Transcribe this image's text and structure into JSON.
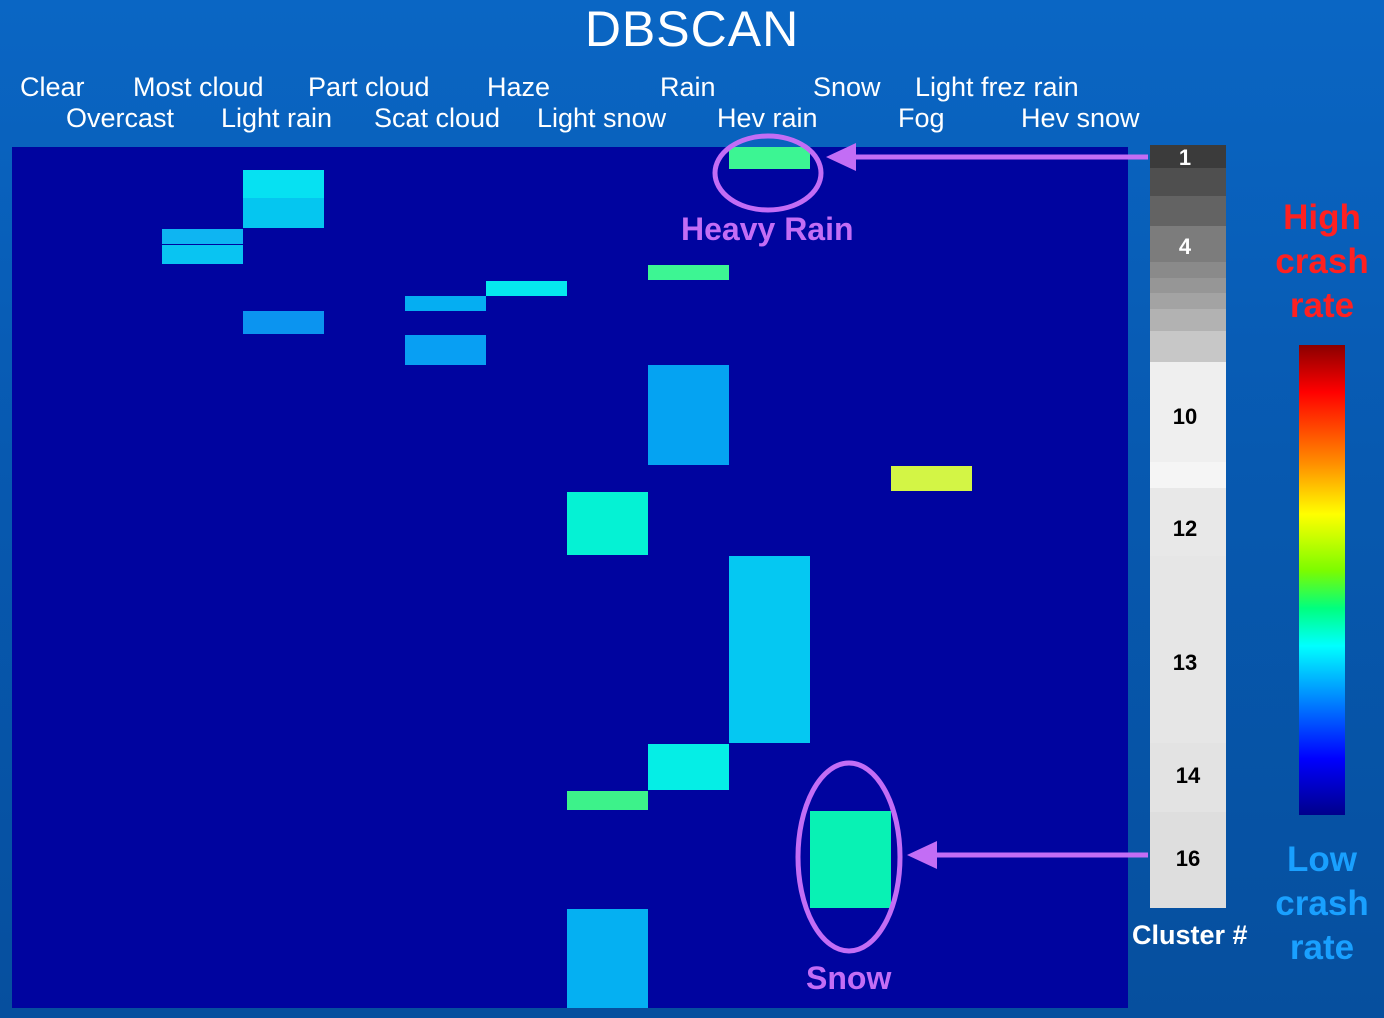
{
  "title": "DBSCAN",
  "chart_data": {
    "type": "heatmap",
    "title": "DBSCAN",
    "categories": [
      "Clear",
      "Overcast",
      "Most cloud",
      "Light rain",
      "Part cloud",
      "Scat cloud",
      "Haze",
      "Light snow",
      "Rain",
      "Hev rain",
      "Snow",
      "Fog",
      "Light frez rain",
      "Hev snow"
    ],
    "cells": [
      {
        "col": 9,
        "color": "#3cf593"
      },
      {
        "col": 3,
        "color": "#06e1f2"
      },
      {
        "col": 3,
        "color": "#05c6f0"
      },
      {
        "col": 2,
        "color": "#0eb5f2"
      },
      {
        "col": 2,
        "color": "#09c4f2"
      },
      {
        "col": 8,
        "color": "#3df593"
      },
      {
        "col": 6,
        "color": "#05e8ee"
      },
      {
        "col": 5,
        "color": "#05aef2"
      },
      {
        "col": 3,
        "color": "#0b94f0"
      },
      {
        "col": 5,
        "color": "#089ff3"
      },
      {
        "col": 8,
        "color": "#05a3f2"
      },
      {
        "col": 11,
        "color": "#d3f545"
      },
      {
        "col": 7,
        "color": "#05f2d4"
      },
      {
        "col": 9,
        "color": "#05c8f2"
      },
      {
        "col": 8,
        "color": "#05eee6"
      },
      {
        "col": 7,
        "color": "#3df28a"
      },
      {
        "col": 10,
        "color": "#08f2b4"
      },
      {
        "col": 7,
        "color": "#05b0f2"
      }
    ],
    "background_color": "#00049f",
    "cluster_labels": [
      "1",
      "4",
      "10",
      "12",
      "13",
      "14",
      "16"
    ],
    "cluster_axis_label": "Cluster #",
    "colorbar": {
      "high_label": "High crash rate",
      "low_label": "Low crash rate",
      "colors": [
        "#8b0000",
        "#ff0000",
        "#ff8c00",
        "#ffff00",
        "#7cfc00",
        "#00ff7f",
        "#00ffff",
        "#0080ff",
        "#0000ff",
        "#00008b"
      ]
    }
  },
  "header": {
    "row1": [
      "Clear",
      "Most cloud",
      "Part cloud",
      "Haze",
      "Rain",
      "Snow",
      "Light frez rain"
    ],
    "row2": [
      "Overcast",
      "Light rain",
      "Scat cloud",
      "Light snow",
      "Hev rain",
      "Fog",
      "Hev snow"
    ]
  },
  "annotations": {
    "heavy_rain": "Heavy Rain",
    "snow": "Snow"
  },
  "legend": {
    "high": [
      "High",
      "crash",
      "rate"
    ],
    "low": [
      "Low",
      "crash",
      "rate"
    ]
  },
  "colors": {
    "annotation": "#c36df5",
    "high_label": "#ff2020",
    "low_label": "#19a0ff"
  }
}
